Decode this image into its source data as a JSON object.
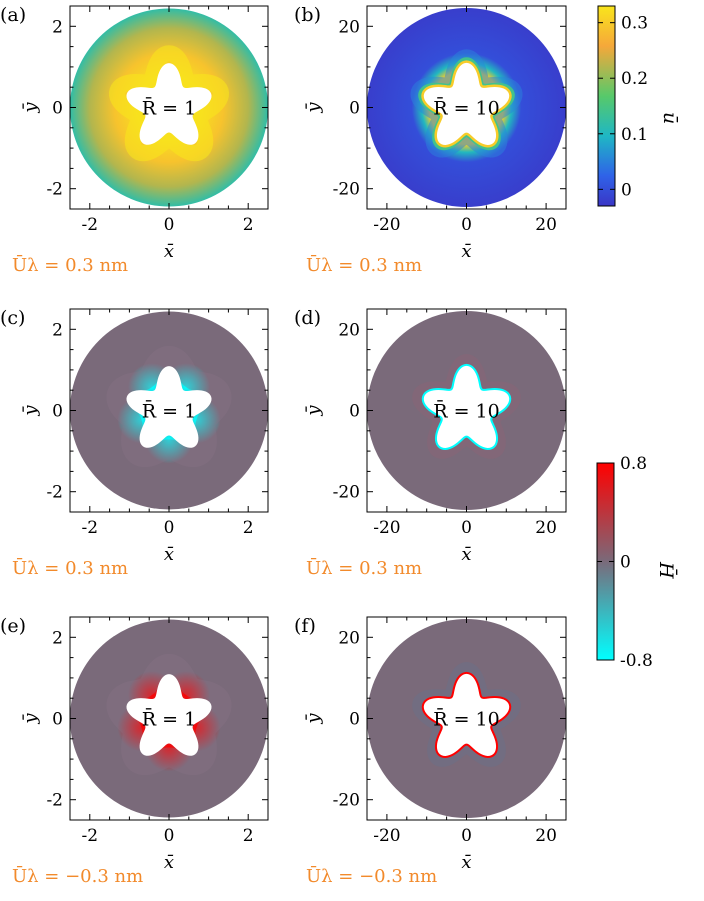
{
  "chart_data": [
    {
      "type": "heatmap",
      "panel": "(a)",
      "x_ticks": [
        "-2",
        "0",
        "2"
      ],
      "y_ticks": [
        "-2",
        "0",
        "2"
      ],
      "xlim": [
        -2.5,
        2.5
      ],
      "ylim": [
        -2.5,
        2.5
      ],
      "xlabel": "x̄",
      "ylabel": "ȳ",
      "center_text": "R̄ = 1",
      "note": "Ūλ = 0.3 nm",
      "colormap": "u",
      "ring_values": [
        0.32,
        0.29,
        0.22,
        0.12
      ],
      "ring_radius_fraction": [
        0.32,
        0.55,
        0.8,
        1.0
      ]
    },
    {
      "type": "heatmap",
      "panel": "(b)",
      "x_ticks": [
        "-20",
        "0",
        "20"
      ],
      "y_ticks": [
        "-20",
        "0",
        "20"
      ],
      "xlim": [
        -25,
        25
      ],
      "ylim": [
        -25,
        25
      ],
      "xlabel": "x̄",
      "ylabel": "ȳ",
      "center_text": "R̄ = 10",
      "note": "Ūλ = 0.3 nm",
      "colormap": "u",
      "ring_values": [
        0.3,
        0.1,
        0.0,
        -0.02
      ],
      "ring_radius_fraction": [
        0.37,
        0.45,
        0.55,
        1.0
      ]
    },
    {
      "type": "heatmap",
      "panel": "(c)",
      "x_ticks": [
        "-2",
        "0",
        "2"
      ],
      "y_ticks": [
        "-2",
        "0",
        "2"
      ],
      "xlim": [
        -2.5,
        2.5
      ],
      "ylim": [
        -2.5,
        2.5
      ],
      "xlabel": "x̄",
      "ylabel": "ȳ",
      "center_text": "R̄ = 1",
      "note": "Ūλ = 0.3 nm",
      "colormap": "H",
      "tip_value": -0.8
    },
    {
      "type": "heatmap",
      "panel": "(d)",
      "x_ticks": [
        "-20",
        "0",
        "20"
      ],
      "y_ticks": [
        "-20",
        "0",
        "20"
      ],
      "xlim": [
        -25,
        25
      ],
      "ylim": [
        -25,
        25
      ],
      "xlabel": "x̄",
      "ylabel": "ȳ",
      "center_text": "R̄ = 10",
      "note": "Ūλ = 0.3 nm",
      "colormap": "H",
      "edge_value": -0.8
    },
    {
      "type": "heatmap",
      "panel": "(e)",
      "x_ticks": [
        "-2",
        "0",
        "2"
      ],
      "y_ticks": [
        "-2",
        "0",
        "2"
      ],
      "xlim": [
        -2.5,
        2.5
      ],
      "ylim": [
        -2.5,
        2.5
      ],
      "xlabel": "x̄",
      "ylabel": "ȳ",
      "center_text": "R̄ = 1",
      "note": "Ūλ = −0.3 nm",
      "colormap": "H",
      "tip_value": 0.8
    },
    {
      "type": "heatmap",
      "panel": "(f)",
      "x_ticks": [
        "-20",
        "0",
        "20"
      ],
      "y_ticks": [
        "-20",
        "0",
        "20"
      ],
      "xlim": [
        -25,
        25
      ],
      "ylim": [
        -25,
        25
      ],
      "xlabel": "x̄",
      "ylabel": "ȳ",
      "center_text": "R̄ = 10",
      "note": "Ūλ = −0.3 nm",
      "colormap": "H",
      "edge_value": 0.8
    }
  ],
  "colorbars": {
    "u": {
      "title": "ū",
      "ticks": [
        "0.3",
        "0.2",
        "0.1",
        "0"
      ],
      "range": [
        -0.03,
        0.33
      ]
    },
    "H": {
      "title": "H̄",
      "ticks": [
        "0.8",
        "0",
        "-0.8"
      ],
      "range": [
        -0.8,
        0.8
      ]
    }
  },
  "colors": {
    "u_low": "#3a36c6",
    "u_mid": "#1fb7c4",
    "u_high": "#f9e51c",
    "H_low": "#00ffff",
    "H_mid": "#7a6a7a",
    "H_high": "#ff0000",
    "note": "#f28a2b"
  }
}
